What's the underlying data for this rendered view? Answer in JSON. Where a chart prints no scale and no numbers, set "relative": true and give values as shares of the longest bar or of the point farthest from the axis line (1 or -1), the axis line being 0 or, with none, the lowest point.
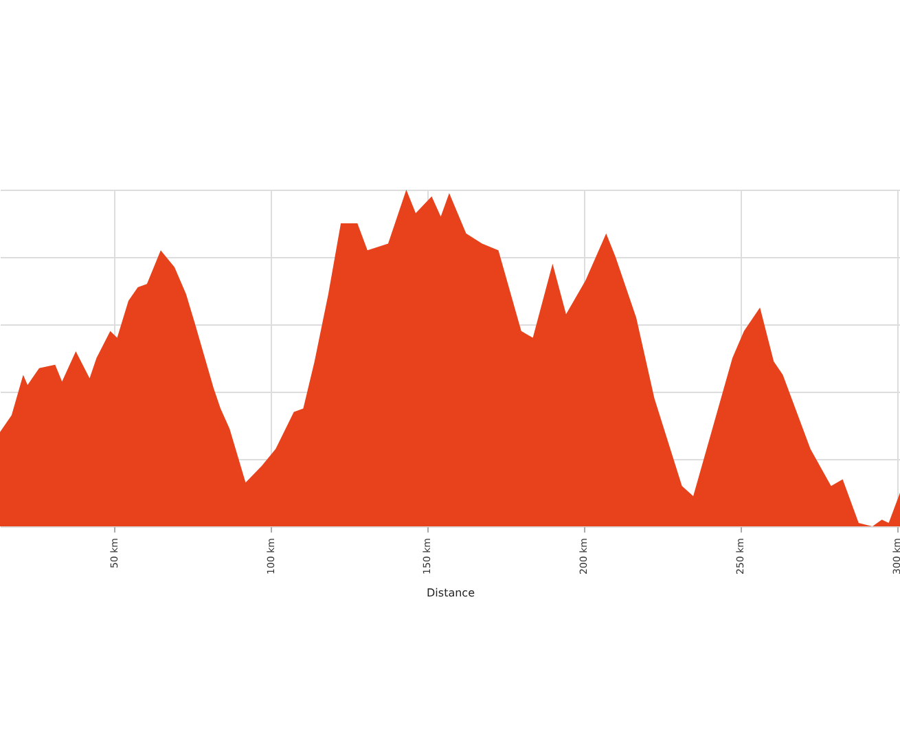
{
  "chart_data": {
    "type": "area",
    "xlabel": "Distance",
    "relative": true,
    "grid": true,
    "xlim": [
      13.7,
      301.0
    ],
    "xticks": [
      {
        "value": 50,
        "label": "50 km"
      },
      {
        "value": 100,
        "label": "100 km"
      },
      {
        "value": 150,
        "label": "150 km"
      },
      {
        "value": 200,
        "label": "200 km"
      },
      {
        "value": 250,
        "label": "250 km"
      },
      {
        "value": 300,
        "label": "300 km"
      }
    ],
    "x": [
      13.7,
      17.4,
      21.1,
      22.5,
      26.2,
      31.3,
      33.5,
      37.9,
      42.3,
      44.5,
      48.9,
      51.1,
      54.7,
      57.7,
      60.6,
      65.0,
      69.4,
      73.1,
      76.0,
      81.9,
      84.1,
      87.0,
      92.1,
      97.3,
      101.7,
      107.5,
      110.5,
      114.1,
      118.5,
      122.5,
      127.8,
      131.0,
      137.6,
      143.4,
      146.4,
      151.5,
      154.4,
      157.1,
      162.5,
      167.6,
      172.8,
      180.1,
      183.8,
      190.1,
      194.4,
      200.6,
      207.2,
      210.2,
      216.8,
      222.6,
      231.4,
      235.0,
      240.2,
      247.5,
      251.2,
      256.3,
      260.7,
      263.6,
      272.4,
      279.0,
      282.7,
      287.8,
      292.2,
      295.2,
      297.4,
      301.0
    ],
    "series": [
      {
        "color": "#e8421d",
        "values": [
          0.28,
          0.33,
          0.45,
          0.42,
          0.47,
          0.48,
          0.43,
          0.52,
          0.44,
          0.5,
          0.58,
          0.56,
          0.67,
          0.71,
          0.72,
          0.82,
          0.77,
          0.69,
          0.6,
          0.41,
          0.35,
          0.29,
          0.13,
          0.18,
          0.23,
          0.34,
          0.35,
          0.49,
          0.69,
          0.9,
          0.9,
          0.82,
          0.84,
          1,
          0.93,
          0.98,
          0.92,
          0.99,
          0.87,
          0.84,
          0.82,
          0.58,
          0.56,
          0.78,
          0.63,
          0.73,
          0.87,
          0.8,
          0.62,
          0.38,
          0.12,
          0.09,
          0.26,
          0.5,
          0.58,
          0.65,
          0.49,
          0.45,
          0.23,
          0.12,
          0.14,
          0.01,
          0,
          0.02,
          0.01,
          0.1
        ]
      }
    ]
  }
}
